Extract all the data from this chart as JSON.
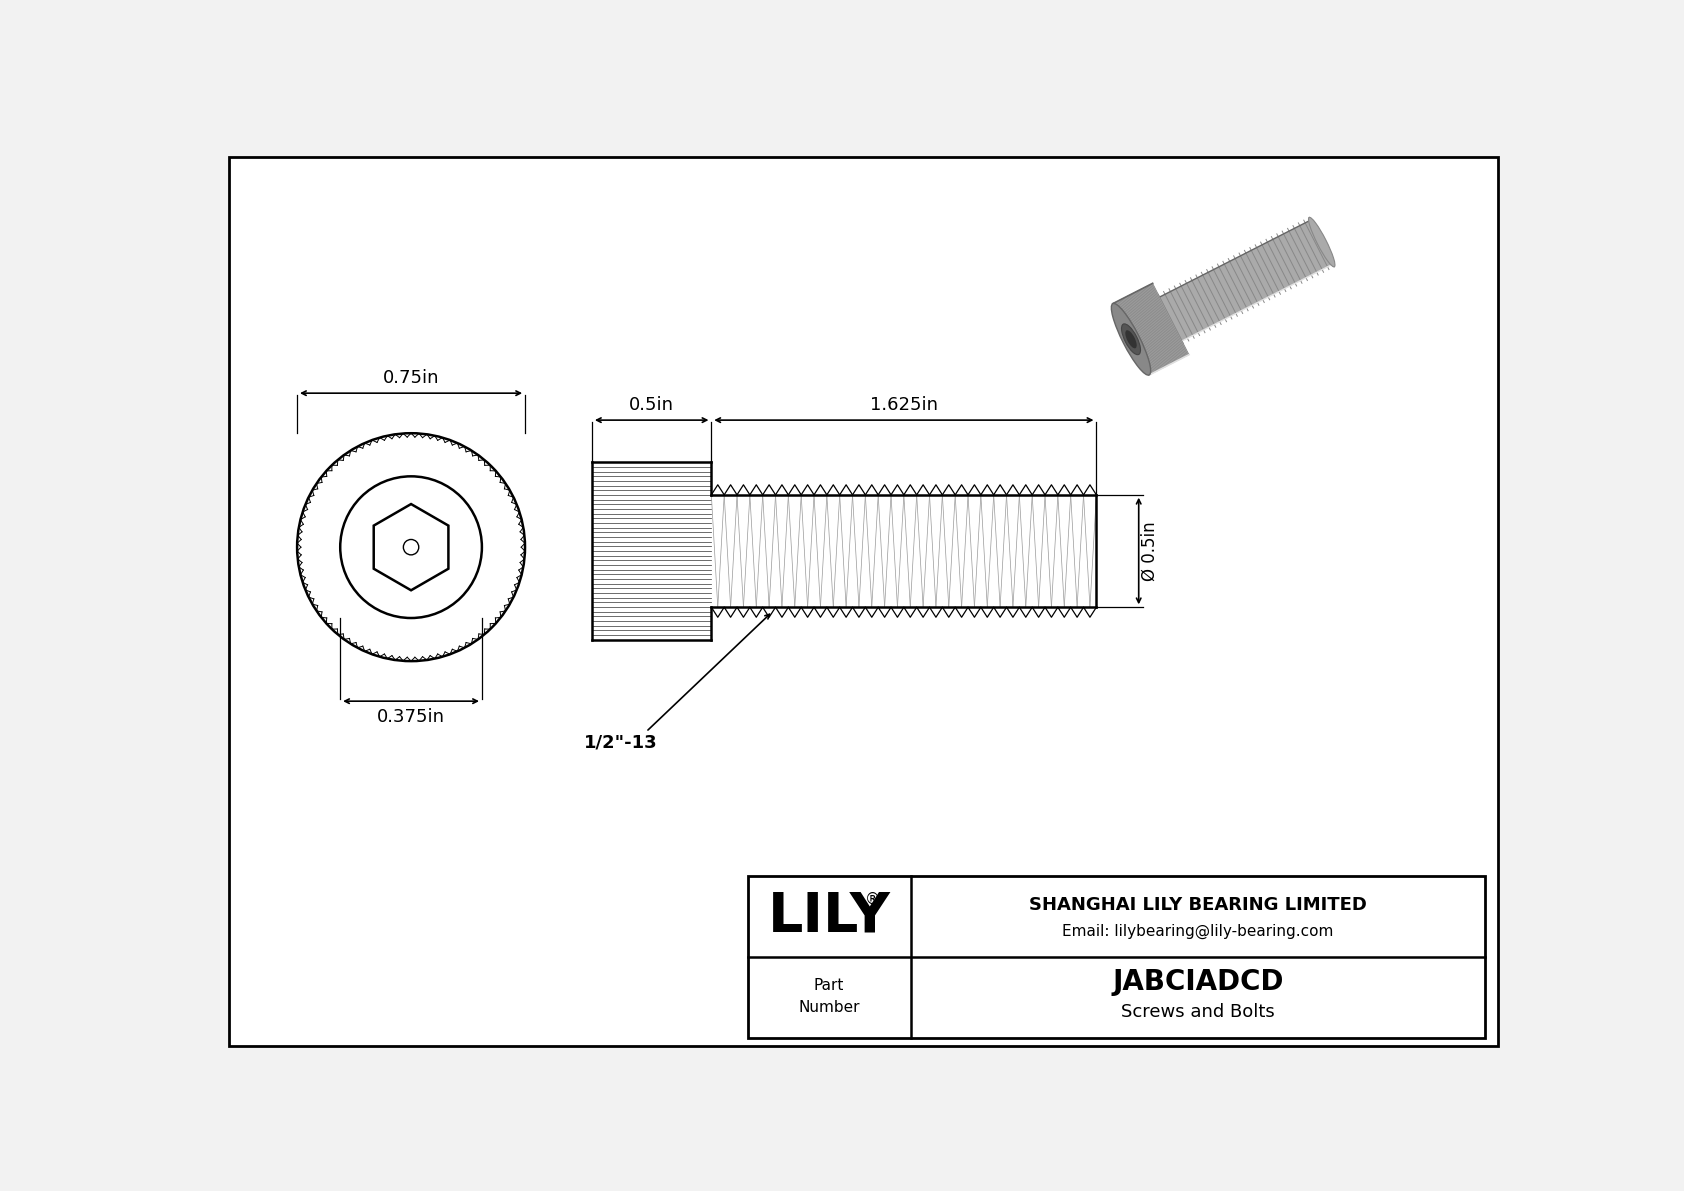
{
  "bg_color": "#f2f2f2",
  "border_color": "#000000",
  "title": "JABCIADCD",
  "subtitle": "Screws and Bolts",
  "company_name": "SHANGHAI LILY BEARING LIMITED",
  "company_email": "Email: lilybearing@lily-bearing.com",
  "part_label": "Part\nNumber",
  "dim_head_width": "0.75in",
  "dim_inner_dia": "0.375in",
  "dim_shank_len": "0.5in",
  "dim_thread_len": "1.625in",
  "dim_thread_dia": "Ø 0.5in",
  "dim_thread_spec": "1/2\"-13",
  "line_color": "#000000",
  "knurl_color": "#555555",
  "thread_inner_color": "#cccccc",
  "gray3d_light": "#c8c8c8",
  "gray3d_mid": "#a8a8a8",
  "gray3d_dark": "#888888"
}
